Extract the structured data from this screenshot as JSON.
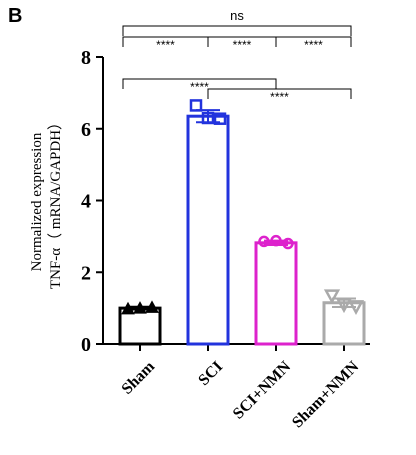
{
  "panel_label": "B",
  "chart_data": {
    "type": "bar",
    "title": "",
    "ylabel_line1": "Normalized expression",
    "ylabel_line2": "TNF-α（ mRNA/GAPDH）",
    "xlabel": "",
    "ylim": [
      0,
      8
    ],
    "yticks": [
      0,
      2,
      4,
      6,
      8
    ],
    "yticks_labels": [
      "0",
      "2",
      "4",
      "6",
      "8"
    ],
    "categories": [
      "Sham",
      "SCI",
      "SCI+NMN",
      "Sham+NMN"
    ],
    "values": [
      1.0,
      6.35,
      2.82,
      1.15
    ],
    "errors": [
      0.04,
      0.17,
      0.06,
      0.12
    ],
    "points": [
      [
        0.98,
        1.0,
        1.02
      ],
      [
        6.65,
        6.3,
        6.28
      ],
      [
        2.86,
        2.88,
        2.8
      ],
      [
        1.35,
        1.1,
        1.05
      ]
    ],
    "colors": [
      "#000000",
      "#2233dd",
      "#dd22cc",
      "#aaaaaa"
    ],
    "markers": [
      "triangle-up",
      "square",
      "circle",
      "triangle-down"
    ],
    "significance": [
      {
        "from": 0,
        "to": 1,
        "label": "****"
      },
      {
        "from": 1,
        "to": 2,
        "label": "****"
      },
      {
        "from": 2,
        "to": 3,
        "label": "****"
      },
      {
        "from": 0,
        "to": 2,
        "label": "****"
      },
      {
        "from": 1,
        "to": 3,
        "label": "****"
      },
      {
        "from": 0,
        "to": 3,
        "label": "ns"
      }
    ]
  }
}
